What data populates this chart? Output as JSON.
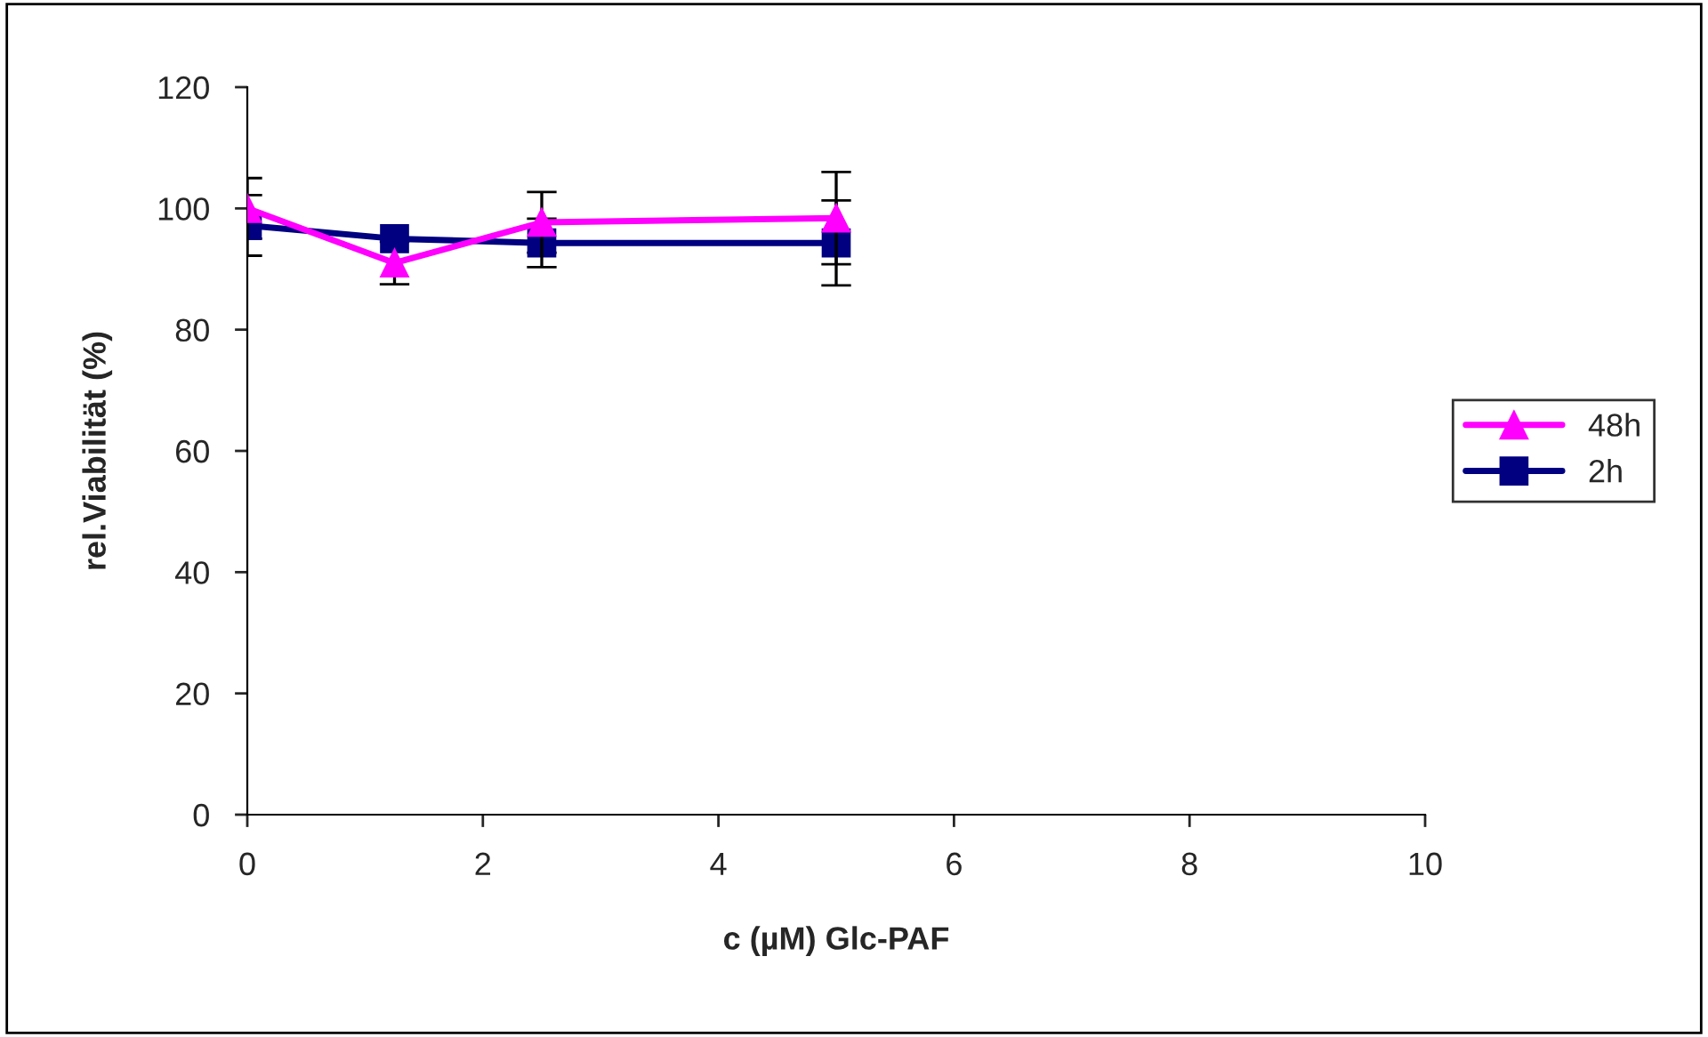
{
  "chart_data": {
    "type": "line",
    "xlabel": "c (µM) Glc-PAF",
    "ylabel": "rel.Viabilität (%)",
    "x": [
      0,
      1.25,
      2.5,
      5
    ],
    "series": [
      {
        "name": "48h",
        "color": "#ff00ff",
        "marker": "triangle",
        "values": [
          100,
          91,
          97.7,
          98.4
        ],
        "errors": [
          5,
          3.5,
          5,
          7.6
        ]
      },
      {
        "name": "2h",
        "color": "#000080",
        "marker": "square",
        "values": [
          97.2,
          95,
          94.3,
          94.3
        ],
        "errors": [
          5,
          null,
          4,
          7
        ]
      }
    ],
    "xlim": [
      0,
      10
    ],
    "xticks": [
      0,
      2,
      4,
      6,
      8,
      10
    ],
    "ylim": [
      0,
      120
    ],
    "yticks": [
      0,
      20,
      40,
      60,
      80,
      100,
      120
    ],
    "grid": false,
    "legend": "right"
  }
}
